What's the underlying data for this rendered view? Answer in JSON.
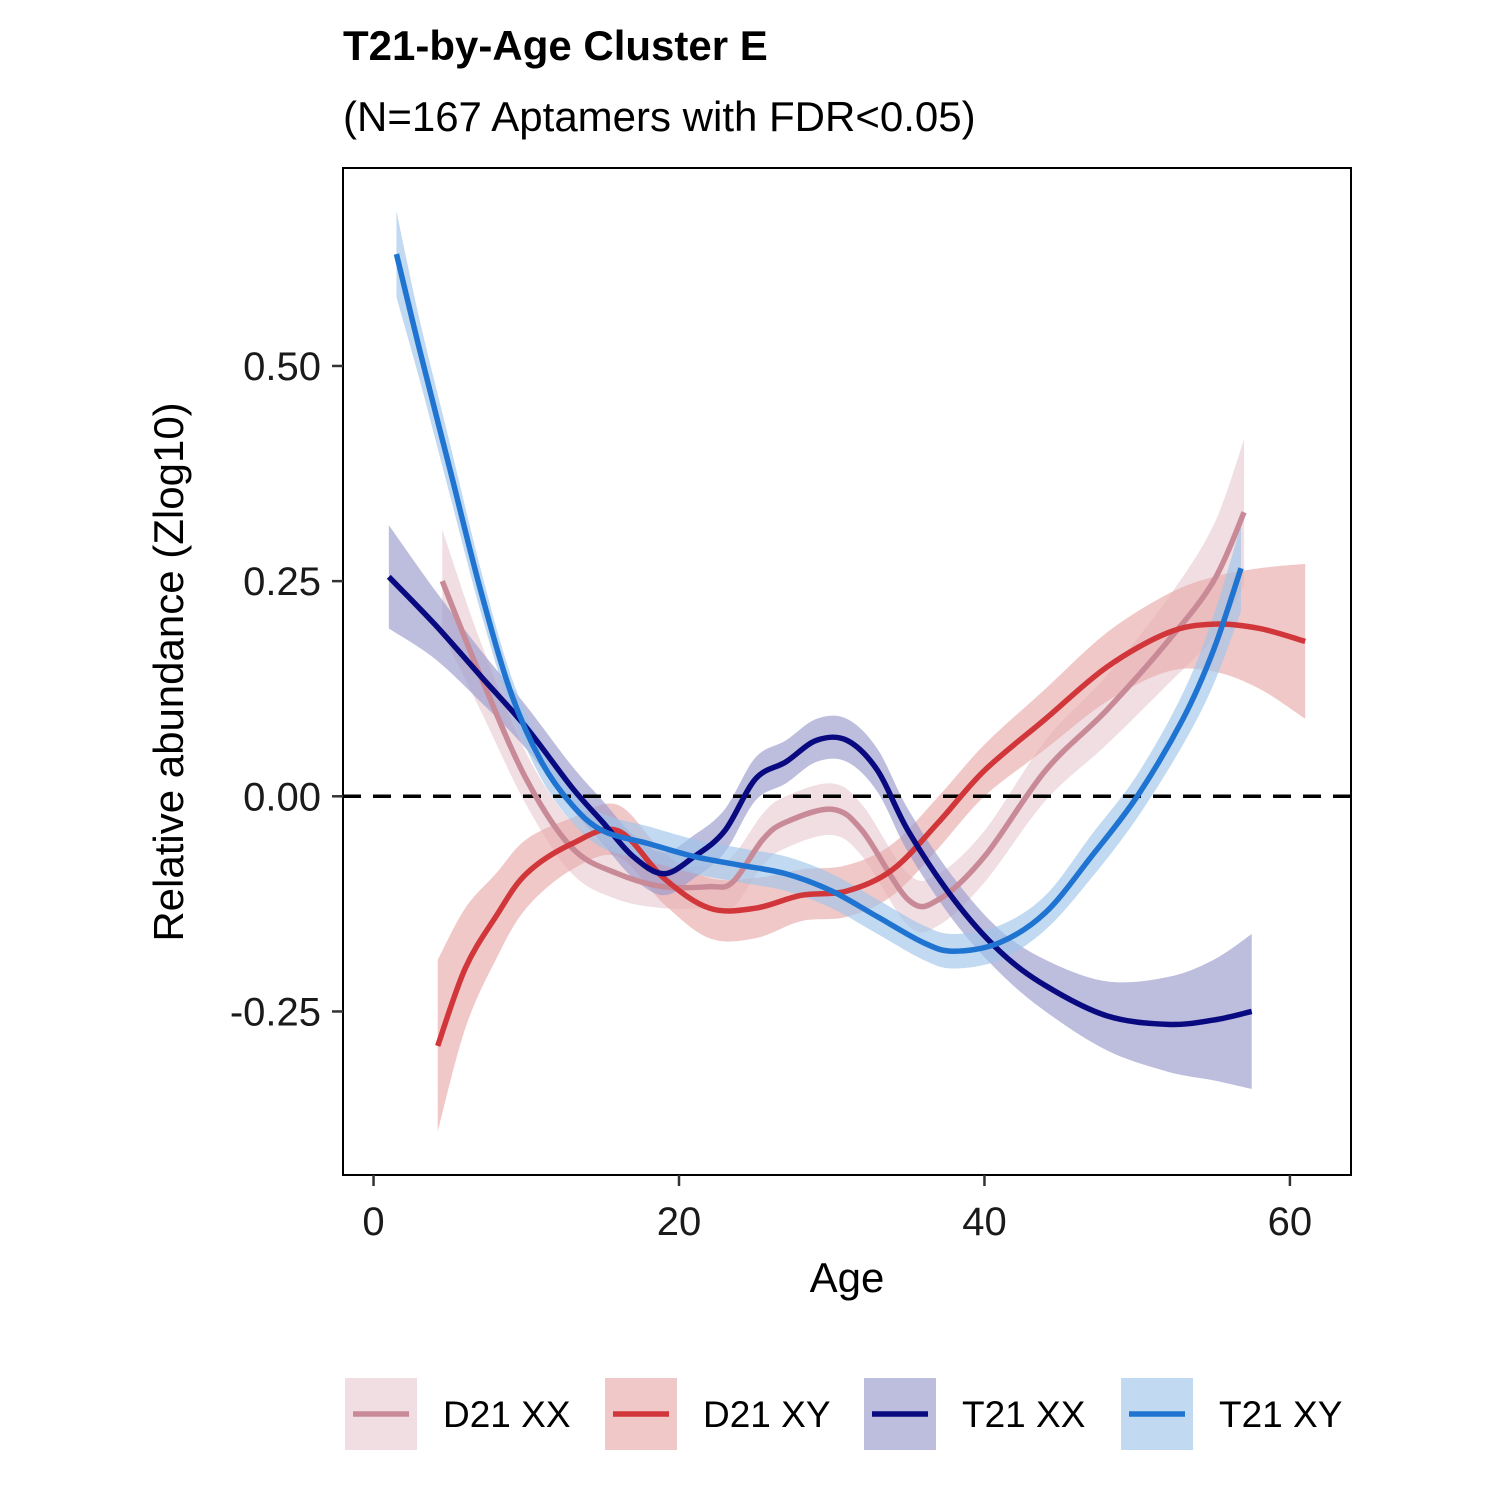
{
  "chart_data": {
    "type": "line",
    "title": "T21-by-Age Cluster E",
    "subtitle": "(N=167 Aptamers with FDR<0.05)",
    "xlabel": "Age",
    "ylabel": "Relative abundance (Zlog10)",
    "xlim": [
      -2,
      64
    ],
    "ylim": [
      -0.44,
      0.73
    ],
    "x_ticks": [
      0,
      20,
      40,
      60
    ],
    "x_tick_labels": [
      "0",
      "20",
      "40",
      "60"
    ],
    "y_ticks": [
      -0.25,
      0,
      0.25,
      0.5
    ],
    "y_tick_labels": [
      "-0.25",
      "0.00",
      "0.25",
      "0.50"
    ],
    "reference_line": {
      "y": 0,
      "style": "dashed",
      "color": "#000000"
    },
    "grid": false,
    "legend_position": "bottom",
    "series": [
      {
        "name": "D21 XX",
        "line_color": "#c98a98",
        "band_color": "#e8cdd3",
        "points": [
          [
            4.5,
            0.25,
            0.06
          ],
          [
            7,
            0.14,
            0.04
          ],
          [
            10,
            0.02,
            0.03
          ],
          [
            13,
            -0.06,
            0.03
          ],
          [
            16,
            -0.09,
            0.03
          ],
          [
            19,
            -0.105,
            0.025
          ],
          [
            22,
            -0.105,
            0.025
          ],
          [
            23.5,
            -0.1,
            0.03
          ],
          [
            25.5,
            -0.05,
            0.03
          ],
          [
            27,
            -0.03,
            0.03
          ],
          [
            30,
            -0.015,
            0.03
          ],
          [
            32,
            -0.04,
            0.03
          ],
          [
            35,
            -0.12,
            0.03
          ],
          [
            37,
            -0.12,
            0.03
          ],
          [
            40,
            -0.07,
            0.03
          ],
          [
            44,
            0.03,
            0.035
          ],
          [
            48,
            0.1,
            0.04
          ],
          [
            52,
            0.18,
            0.05
          ],
          [
            55,
            0.25,
            0.065
          ],
          [
            57,
            0.33,
            0.085
          ]
        ]
      },
      {
        "name": "D21 XY",
        "line_color": "#d1363a",
        "band_color": "#eaabab",
        "points": [
          [
            4.2,
            -0.29,
            0.1
          ],
          [
            6,
            -0.2,
            0.07
          ],
          [
            8,
            -0.14,
            0.05
          ],
          [
            10,
            -0.09,
            0.04
          ],
          [
            13,
            -0.055,
            0.03
          ],
          [
            16,
            -0.04,
            0.03
          ],
          [
            19,
            -0.095,
            0.03
          ],
          [
            22,
            -0.13,
            0.035
          ],
          [
            25,
            -0.13,
            0.035
          ],
          [
            28,
            -0.115,
            0.03
          ],
          [
            31,
            -0.11,
            0.03
          ],
          [
            34,
            -0.085,
            0.03
          ],
          [
            37,
            -0.03,
            0.03
          ],
          [
            40,
            0.03,
            0.03
          ],
          [
            44,
            0.09,
            0.035
          ],
          [
            48,
            0.15,
            0.04
          ],
          [
            52,
            0.19,
            0.045
          ],
          [
            55,
            0.2,
            0.055
          ],
          [
            58,
            0.195,
            0.07
          ],
          [
            61,
            0.18,
            0.09
          ]
        ]
      },
      {
        "name": "T21 XX",
        "line_color": "#0a0a80",
        "band_color": "#9999cc",
        "points": [
          [
            1,
            0.255,
            0.06
          ],
          [
            4,
            0.2,
            0.04
          ],
          [
            7,
            0.14,
            0.03
          ],
          [
            10,
            0.08,
            0.025
          ],
          [
            13,
            0.01,
            0.025
          ],
          [
            15,
            -0.03,
            0.025
          ],
          [
            17,
            -0.07,
            0.025
          ],
          [
            19,
            -0.09,
            0.025
          ],
          [
            21,
            -0.07,
            0.025
          ],
          [
            23,
            -0.04,
            0.025
          ],
          [
            25,
            0.02,
            0.025
          ],
          [
            27,
            0.04,
            0.025
          ],
          [
            29,
            0.065,
            0.025
          ],
          [
            31,
            0.065,
            0.025
          ],
          [
            33,
            0.03,
            0.025
          ],
          [
            35,
            -0.04,
            0.025
          ],
          [
            38,
            -0.12,
            0.025
          ],
          [
            41,
            -0.18,
            0.025
          ],
          [
            44,
            -0.22,
            0.03
          ],
          [
            48,
            -0.255,
            0.04
          ],
          [
            52,
            -0.265,
            0.055
          ],
          [
            55,
            -0.26,
            0.07
          ],
          [
            57.5,
            -0.25,
            0.09
          ]
        ]
      },
      {
        "name": "T21 XY",
        "line_color": "#1f74d1",
        "band_color": "#a0c4ea",
        "points": [
          [
            1.5,
            0.63,
            0.05
          ],
          [
            3,
            0.52,
            0.035
          ],
          [
            5,
            0.38,
            0.03
          ],
          [
            7,
            0.24,
            0.025
          ],
          [
            9,
            0.12,
            0.02
          ],
          [
            11,
            0.04,
            0.02
          ],
          [
            13,
            -0.01,
            0.02
          ],
          [
            15,
            -0.04,
            0.02
          ],
          [
            18,
            -0.055,
            0.02
          ],
          [
            21,
            -0.07,
            0.02
          ],
          [
            24,
            -0.08,
            0.02
          ],
          [
            27,
            -0.09,
            0.02
          ],
          [
            30,
            -0.11,
            0.02
          ],
          [
            33,
            -0.14,
            0.02
          ],
          [
            36,
            -0.17,
            0.02
          ],
          [
            38,
            -0.18,
            0.02
          ],
          [
            41,
            -0.17,
            0.02
          ],
          [
            44,
            -0.135,
            0.02
          ],
          [
            47,
            -0.07,
            0.025
          ],
          [
            50,
            0.0,
            0.025
          ],
          [
            53,
            0.09,
            0.03
          ],
          [
            55,
            0.17,
            0.04
          ],
          [
            56.8,
            0.265,
            0.05
          ]
        ]
      }
    ]
  }
}
